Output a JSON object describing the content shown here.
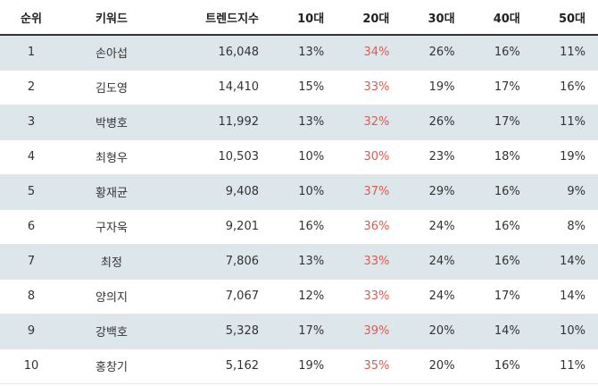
{
  "headers": [
    "순위",
    "키워드",
    "트렌드지수",
    "10대",
    "20대",
    "30대",
    "40대",
    "50대"
  ],
  "highlight_color": "#e05a4e",
  "rows": [
    {
      "rank": "1",
      "keyword": "손아섭",
      "trend": "16,048",
      "a10": "13%",
      "a20": "34%",
      "a30": "26%",
      "a40": "16%",
      "a50": "11%"
    },
    {
      "rank": "2",
      "keyword": "김도영",
      "trend": "14,410",
      "a10": "15%",
      "a20": "33%",
      "a30": "19%",
      "a40": "17%",
      "a50": "16%"
    },
    {
      "rank": "3",
      "keyword": "박병호",
      "trend": "11,992",
      "a10": "13%",
      "a20": "32%",
      "a30": "26%",
      "a40": "17%",
      "a50": "11%"
    },
    {
      "rank": "4",
      "keyword": "최형우",
      "trend": "10,503",
      "a10": "10%",
      "a20": "30%",
      "a30": "23%",
      "a40": "18%",
      "a50": "19%"
    },
    {
      "rank": "5",
      "keyword": "황재균",
      "trend": "9,408",
      "a10": "10%",
      "a20": "37%",
      "a30": "29%",
      "a40": "16%",
      "a50": "9%"
    },
    {
      "rank": "6",
      "keyword": "구자욱",
      "trend": "9,201",
      "a10": "16%",
      "a20": "36%",
      "a30": "24%",
      "a40": "16%",
      "a50": "8%"
    },
    {
      "rank": "7",
      "keyword": "최정",
      "trend": "7,806",
      "a10": "13%",
      "a20": "33%",
      "a30": "24%",
      "a40": "16%",
      "a50": "14%"
    },
    {
      "rank": "8",
      "keyword": "양의지",
      "trend": "7,067",
      "a10": "12%",
      "a20": "33%",
      "a30": "24%",
      "a40": "17%",
      "a50": "14%"
    },
    {
      "rank": "9",
      "keyword": "강백호",
      "trend": "5,328",
      "a10": "17%",
      "a20": "39%",
      "a30": "20%",
      "a40": "14%",
      "a50": "10%"
    },
    {
      "rank": "10",
      "keyword": "홍창기",
      "trend": "5,162",
      "a10": "19%",
      "a20": "35%",
      "a30": "20%",
      "a40": "16%",
      "a50": "11%"
    }
  ]
}
